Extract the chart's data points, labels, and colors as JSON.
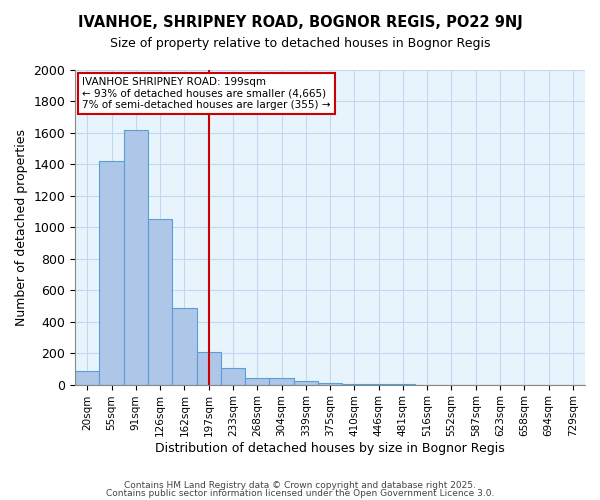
{
  "title_line1": "IVANHOE, SHRIPNEY ROAD, BOGNOR REGIS, PO22 9NJ",
  "title_line2": "Size of property relative to detached houses in Bognor Regis",
  "xlabel": "Distribution of detached houses by size in Bognor Regis",
  "ylabel": "Number of detached properties",
  "bins": [
    "20sqm",
    "55sqm",
    "91sqm",
    "126sqm",
    "162sqm",
    "197sqm",
    "233sqm",
    "268sqm",
    "304sqm",
    "339sqm",
    "375sqm",
    "410sqm",
    "446sqm",
    "481sqm",
    "516sqm",
    "552sqm",
    "587sqm",
    "623sqm",
    "658sqm",
    "694sqm",
    "729sqm"
  ],
  "values": [
    85,
    1420,
    1620,
    1050,
    490,
    205,
    105,
    42,
    42,
    20,
    12,
    5,
    2,
    1,
    0,
    0,
    0,
    0,
    0,
    0,
    0
  ],
  "bar_color": "#aec6e8",
  "bar_edge_color": "#5a9fd4",
  "vline_x_index": 5,
  "vline_color": "#cc0000",
  "annotation_text": "IVANHOE SHRIPNEY ROAD: 199sqm\n← 93% of detached houses are smaller (4,665)\n7% of semi-detached houses are larger (355) →",
  "annotation_box_color": "#cc0000",
  "annotation_text_color": "#000000",
  "ylim": [
    0,
    2000
  ],
  "yticks": [
    0,
    200,
    400,
    600,
    800,
    1000,
    1200,
    1400,
    1600,
    1800,
    2000
  ],
  "grid_color": "#c0d8f0",
  "background_color": "#e8f4fc",
  "footer_line1": "Contains HM Land Registry data © Crown copyright and database right 2025.",
  "footer_line2": "Contains public sector information licensed under the Open Government Licence 3.0."
}
